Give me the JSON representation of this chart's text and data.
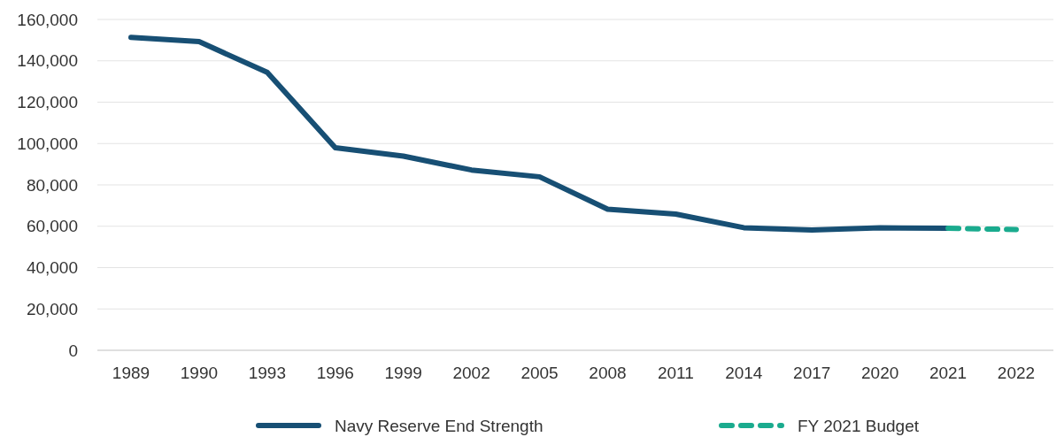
{
  "chart_data": {
    "type": "line",
    "categories": [
      "1989",
      "1990",
      "1993",
      "1996",
      "1999",
      "2002",
      "2005",
      "2008",
      "2011",
      "2014",
      "2017",
      "2020",
      "2021",
      "2022"
    ],
    "series": [
      {
        "name": "Navy Reserve End Strength",
        "color": "#174f74",
        "line_style": "solid",
        "values": [
          151300,
          149300,
          134400,
          98000,
          93900,
          87200,
          83900,
          68200,
          65900,
          59300,
          58200,
          59200,
          59000,
          null
        ]
      },
      {
        "name": "FY 2021 Budget",
        "color": "#1aab8e",
        "line_style": "dashed",
        "values": [
          null,
          null,
          null,
          null,
          null,
          null,
          null,
          null,
          null,
          null,
          null,
          null,
          59000,
          58400
        ]
      }
    ],
    "ylim": [
      0,
      160000
    ],
    "yticks": [
      {
        "value": 0,
        "label": "0"
      },
      {
        "value": 20000,
        "label": "20,000"
      },
      {
        "value": 40000,
        "label": "40,000"
      },
      {
        "value": 60000,
        "label": "60,000"
      },
      {
        "value": 80000,
        "label": "80,000"
      },
      {
        "value": 100000,
        "label": "100,000"
      },
      {
        "value": 120000,
        "label": "120,000"
      },
      {
        "value": 140000,
        "label": "140,000"
      },
      {
        "value": 160000,
        "label": "160,000"
      }
    ],
    "grid": "y",
    "legend": "bottom",
    "marker": "none"
  }
}
